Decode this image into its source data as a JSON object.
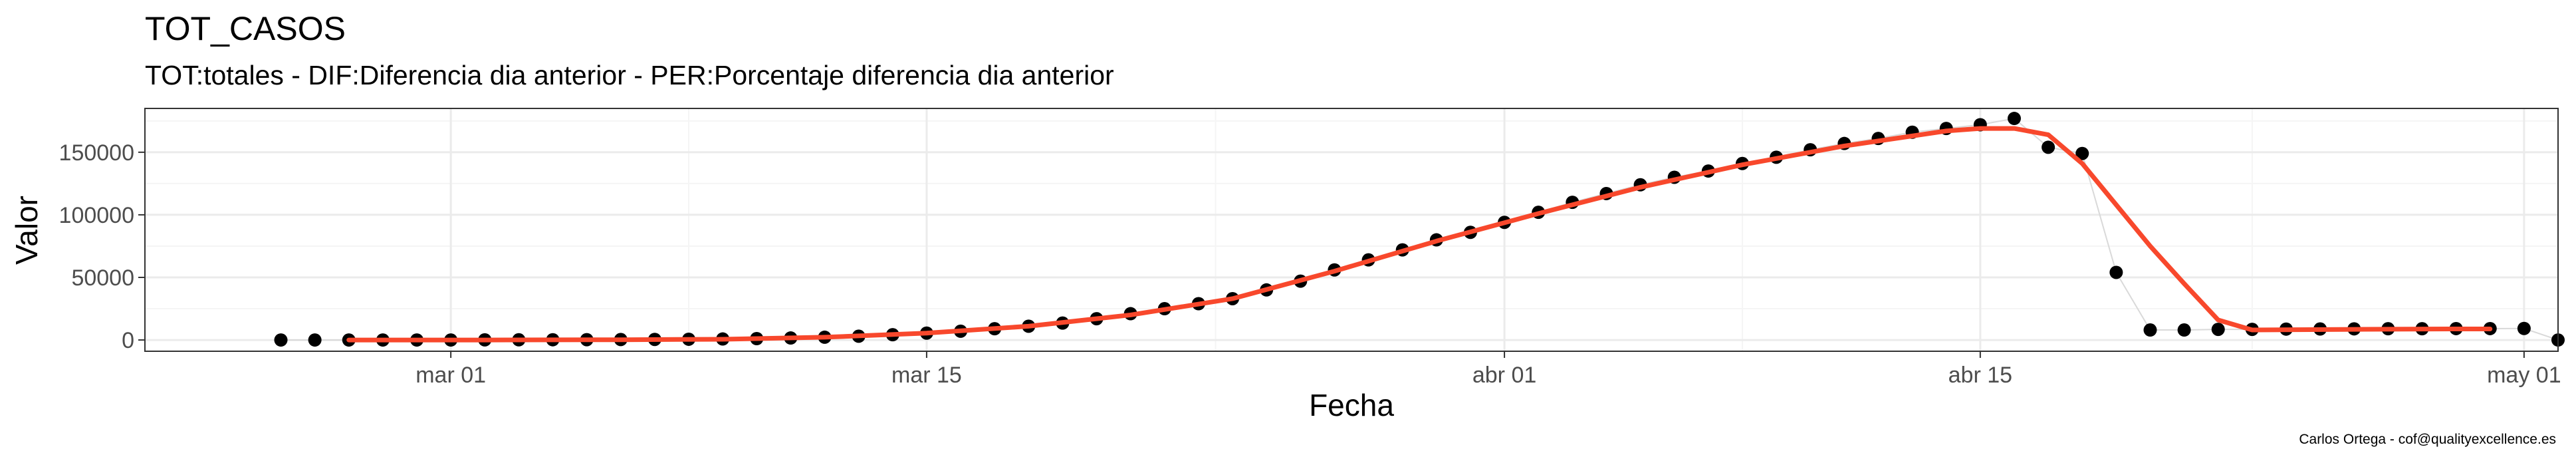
{
  "chart_data": {
    "type": "scatter",
    "title": "TOT_CASOS",
    "subtitle": "TOT:totales - DIF:Diferencia dia anterior - PER:Porcentaje diferencia dia anterior",
    "xlabel": "Fecha",
    "ylabel": "Valor",
    "caption": "Carlos Ortega - cof@qualityexcellence.es",
    "x_ticks": [
      {
        "date": "2020-03-01",
        "label": "mar 01"
      },
      {
        "date": "2020-03-15",
        "label": "mar 15"
      },
      {
        "date": "2020-04-01",
        "label": "abr 01"
      },
      {
        "date": "2020-04-15",
        "label": "abr 15"
      },
      {
        "date": "2020-05-01",
        "label": "may 01"
      }
    ],
    "y_ticks": [
      0,
      50000,
      100000,
      150000
    ],
    "xlim": [
      "2020-02-21",
      "2020-05-02"
    ],
    "ylim": [
      -9000,
      185000
    ],
    "grid": true,
    "colors": {
      "points": "#000000",
      "smooth": "#f8482c",
      "connector": "#d9d9d9",
      "grid_major": "#ebebeb",
      "grid_minor": "#f5f5f5",
      "panel_border": "#333333"
    },
    "series": [
      {
        "kind": "points",
        "points": [
          [
            "2020-02-25",
            0
          ],
          [
            "2020-02-26",
            0
          ],
          [
            "2020-02-27",
            0
          ],
          [
            "2020-02-28",
            0
          ],
          [
            "2020-02-29",
            0
          ],
          [
            "2020-03-01",
            0
          ],
          [
            "2020-03-02",
            100
          ],
          [
            "2020-03-03",
            150
          ],
          [
            "2020-03-04",
            200
          ],
          [
            "2020-03-05",
            250
          ],
          [
            "2020-03-06",
            350
          ],
          [
            "2020-03-07",
            450
          ],
          [
            "2020-03-08",
            600
          ],
          [
            "2020-03-09",
            800
          ],
          [
            "2020-03-10",
            1100
          ],
          [
            "2020-03-11",
            1600
          ],
          [
            "2020-03-12",
            2200
          ],
          [
            "2020-03-13",
            3000
          ],
          [
            "2020-03-14",
            4200
          ],
          [
            "2020-03-15",
            5500
          ],
          [
            "2020-03-16",
            7000
          ],
          [
            "2020-03-17",
            9000
          ],
          [
            "2020-03-18",
            11000
          ],
          [
            "2020-03-19",
            13500
          ],
          [
            "2020-03-20",
            17000
          ],
          [
            "2020-03-21",
            21000
          ],
          [
            "2020-03-22",
            25000
          ],
          [
            "2020-03-23",
            29000
          ],
          [
            "2020-03-24",
            33000
          ],
          [
            "2020-03-25",
            40000
          ],
          [
            "2020-03-26",
            47000
          ],
          [
            "2020-03-27",
            56000
          ],
          [
            "2020-03-28",
            64000
          ],
          [
            "2020-03-29",
            72000
          ],
          [
            "2020-03-30",
            80000
          ],
          [
            "2020-03-31",
            86000
          ],
          [
            "2020-04-01",
            94000
          ],
          [
            "2020-04-02",
            102000
          ],
          [
            "2020-04-03",
            110000
          ],
          [
            "2020-04-04",
            117000
          ],
          [
            "2020-04-05",
            124000
          ],
          [
            "2020-04-06",
            130000
          ],
          [
            "2020-04-07",
            135000
          ],
          [
            "2020-04-08",
            141000
          ],
          [
            "2020-04-09",
            146000
          ],
          [
            "2020-04-10",
            152000
          ],
          [
            "2020-04-11",
            157000
          ],
          [
            "2020-04-12",
            161000
          ],
          [
            "2020-04-13",
            166000
          ],
          [
            "2020-04-14",
            169000
          ],
          [
            "2020-04-15",
            172000
          ],
          [
            "2020-04-16",
            177000
          ],
          [
            "2020-04-17",
            154000
          ],
          [
            "2020-04-18",
            149000
          ],
          [
            "2020-04-19",
            54000
          ],
          [
            "2020-04-20",
            8000
          ],
          [
            "2020-04-21",
            8000
          ],
          [
            "2020-04-22",
            8500
          ],
          [
            "2020-04-23",
            8500
          ],
          [
            "2020-04-24",
            8700
          ],
          [
            "2020-04-25",
            8800
          ],
          [
            "2020-04-26",
            8900
          ],
          [
            "2020-04-27",
            9000
          ],
          [
            "2020-04-28",
            9000
          ],
          [
            "2020-04-29",
            9100
          ],
          [
            "2020-04-30",
            9100
          ],
          [
            "2020-05-01",
            9200
          ],
          [
            "2020-05-02",
            0
          ]
        ]
      },
      {
        "kind": "smooth",
        "points": [
          [
            "2020-02-27",
            0
          ],
          [
            "2020-03-02",
            0
          ],
          [
            "2020-03-06",
            200
          ],
          [
            "2020-03-09",
            600
          ],
          [
            "2020-03-12",
            2200
          ],
          [
            "2020-03-15",
            5500
          ],
          [
            "2020-03-18",
            11000
          ],
          [
            "2020-03-21",
            20000
          ],
          [
            "2020-03-24",
            33000
          ],
          [
            "2020-03-27",
            55000
          ],
          [
            "2020-03-30",
            79000
          ],
          [
            "2020-04-02",
            101000
          ],
          [
            "2020-04-05",
            122000
          ],
          [
            "2020-04-08",
            140000
          ],
          [
            "2020-04-11",
            155000
          ],
          [
            "2020-04-13",
            163000
          ],
          [
            "2020-04-14",
            167000
          ],
          [
            "2020-04-15",
            169000
          ],
          [
            "2020-04-16",
            169000
          ],
          [
            "2020-04-17",
            164000
          ],
          [
            "2020-04-18",
            141000
          ],
          [
            "2020-04-19",
            108000
          ],
          [
            "2020-04-20",
            75000
          ],
          [
            "2020-04-21",
            45000
          ],
          [
            "2020-04-22",
            16000
          ],
          [
            "2020-04-23",
            8000
          ],
          [
            "2020-04-26",
            8500
          ],
          [
            "2020-04-29",
            8800
          ],
          [
            "2020-04-30",
            8800
          ]
        ]
      }
    ]
  }
}
